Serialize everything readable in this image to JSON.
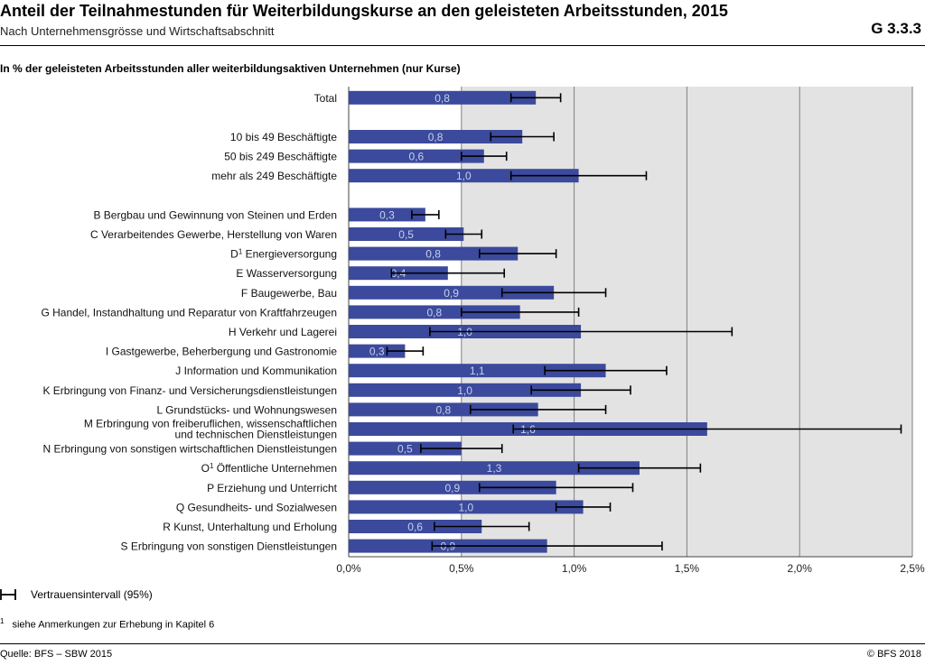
{
  "header": {
    "title": "Anteil der Teilnahmestunden für Weiterbildungskurse an den geleisteten Arbeitsstunden, 2015",
    "subtitle": "Nach Unternehmensgrösse und Wirtschaftsabschnitt",
    "code": "G 3.3.3"
  },
  "footer": {
    "unit_note": "In % der geleisteten Arbeitsstunden aller weiterbildungsaktiven Unternehmen (nur Kurse)",
    "legend_label": "Vertrauensintervall (95%)",
    "footnote_mark": "1",
    "footnote_text": "siehe Anmerkungen zur Erhebung in Kapitel 6",
    "source": "Quelle: BFS – SBW 2015",
    "copyright": "© BFS 2018"
  },
  "colors": {
    "bar": "#3b4a9c",
    "bar_label": "#c9cfea",
    "plot_bg": "#e3e3e3",
    "gridline": "#7f7f7f",
    "error_bar": "#000000"
  },
  "chart_data": {
    "type": "bar",
    "orientation": "horizontal",
    "xlim": [
      0,
      2.5
    ],
    "x_ticks": [
      "0,0%",
      "0,5%",
      "1,0%",
      "1,5%",
      "2,0%",
      "2,5%"
    ],
    "x_tick_values": [
      0,
      0.5,
      1.0,
      1.5,
      2.0,
      2.5
    ],
    "grid": true,
    "legend": "bottom-left",
    "groups": [
      {
        "name": "",
        "categories": [
          {
            "label": "Total",
            "value": 0.83,
            "value_label": "0,8",
            "ci": [
              0.72,
              0.94
            ]
          }
        ]
      },
      {
        "name": "",
        "categories": [
          {
            "label": "10 bis 49 Beschäftigte",
            "value": 0.77,
            "value_label": "0,8",
            "ci": [
              0.63,
              0.91
            ]
          },
          {
            "label": "50 bis 249 Beschäftigte",
            "value": 0.6,
            "value_label": "0,6",
            "ci": [
              0.5,
              0.7
            ]
          },
          {
            "label": "mehr als 249 Beschäftigte",
            "value": 1.02,
            "value_label": "1,0",
            "ci": [
              0.72,
              1.32
            ]
          }
        ]
      },
      {
        "name": "",
        "categories": [
          {
            "label": "B Bergbau und Gewinnung von Steinen und Erden",
            "value": 0.34,
            "value_label": "0,3",
            "ci": [
              0.28,
              0.4
            ]
          },
          {
            "label": "C Verarbeitendes Gewerbe, Herstellung von Waren",
            "value": 0.51,
            "value_label": "0,5",
            "ci": [
              0.43,
              0.59
            ]
          },
          {
            "label": "D Energieversorgung",
            "sup": "1",
            "value": 0.75,
            "value_label": "0,8",
            "ci": [
              0.58,
              0.92
            ]
          },
          {
            "label": "E Wasserversorgung",
            "value": 0.44,
            "value_label": "0,4",
            "ci": [
              0.19,
              0.69
            ]
          },
          {
            "label": "F Baugewerbe, Bau",
            "value": 0.91,
            "value_label": "0,9",
            "ci": [
              0.68,
              1.14
            ]
          },
          {
            "label": "G Handel, Instandhaltung und Reparatur von Kraftfahrzeugen",
            "value": 0.76,
            "value_label": "0,8",
            "ci": [
              0.5,
              1.02
            ]
          },
          {
            "label": "H Verkehr und Lagerei",
            "value": 1.03,
            "value_label": "1,0",
            "ci": [
              0.36,
              1.7
            ]
          },
          {
            "label": "I Gastgewerbe, Beherbergung und Gastronomie",
            "value": 0.25,
            "value_label": "0,3",
            "ci": [
              0.17,
              0.33
            ]
          },
          {
            "label": "J Information und Kommunikation",
            "value": 1.14,
            "value_label": "1,1",
            "ci": [
              0.87,
              1.41
            ]
          },
          {
            "label": "K Erbringung von Finanz- und Versicherungsdienstleistungen",
            "value": 1.03,
            "value_label": "1,0",
            "ci": [
              0.81,
              1.25
            ]
          },
          {
            "label": "L Grundstücks- und Wohnungswesen",
            "value": 0.84,
            "value_label": "0,8",
            "ci": [
              0.54,
              1.14
            ]
          },
          {
            "label": "M Erbringung von freiberuflichen, wissenschaftlichen und technischen Dienstleistungen",
            "label_lines": [
              "M Erbringung von freiberuflichen, wissenschaftlichen",
              "und technischen Dienstleistungen"
            ],
            "value": 1.59,
            "value_label": "1,6",
            "ci": [
              0.73,
              2.45
            ]
          },
          {
            "label": "N Erbringung von sonstigen wirtschaftlichen Dienstleistungen",
            "value": 0.5,
            "value_label": "0,5",
            "ci": [
              0.32,
              0.68
            ]
          },
          {
            "label": "O Öffentliche Unternehmen",
            "sup": "1",
            "value": 1.29,
            "value_label": "1,3",
            "ci": [
              1.02,
              1.56
            ]
          },
          {
            "label": "P Erziehung und Unterricht",
            "value": 0.92,
            "value_label": "0,9",
            "ci": [
              0.58,
              1.26
            ]
          },
          {
            "label": "Q Gesundheits- und Sozialwesen",
            "value": 1.04,
            "value_label": "1,0",
            "ci": [
              0.92,
              1.16
            ]
          },
          {
            "label": "R Kunst, Unterhaltung und Erholung",
            "value": 0.59,
            "value_label": "0,6",
            "ci": [
              0.38,
              0.8
            ]
          },
          {
            "label": "S Erbringung von sonstigen Dienstleistungen",
            "value": 0.88,
            "value_label": "0,9",
            "ci": [
              0.37,
              1.39
            ]
          }
        ]
      }
    ]
  }
}
